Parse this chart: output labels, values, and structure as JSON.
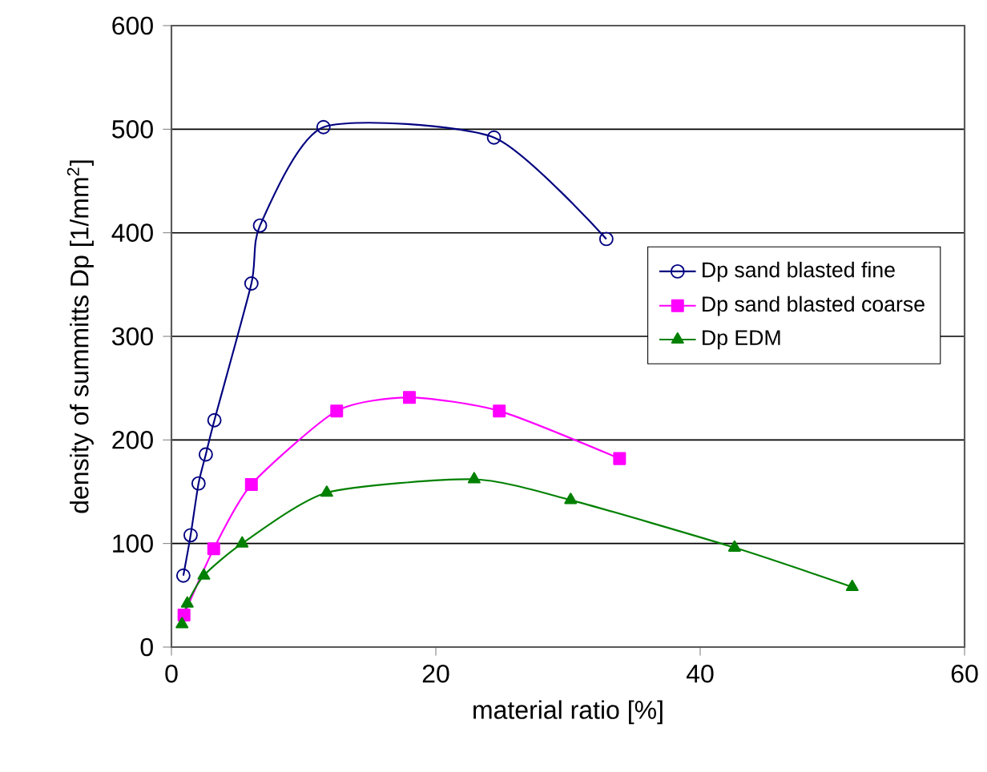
{
  "chart_data": {
    "type": "line",
    "xlabel": "material ratio [%]",
    "ylabel": "density  of summitts Dp [1/mm$^{2}$]",
    "xlim": [
      0,
      60
    ],
    "xticks": [
      0,
      20,
      40,
      60
    ],
    "ylim": [
      0,
      600
    ],
    "yticks": [
      0,
      100,
      200,
      300,
      400,
      500,
      600
    ],
    "grid": "y",
    "legend": "right",
    "series": [
      {
        "name": "Dp sand blasted fine",
        "color": "#000080",
        "marker": "circle",
        "x": [
          0.9,
          1.45,
          2.05,
          2.6,
          3.25,
          6.05,
          6.7,
          11.5,
          24.4,
          32.9
        ],
        "values": [
          69,
          108,
          158,
          186,
          219,
          351,
          407,
          502,
          492,
          394
        ]
      },
      {
        "name": "Dp sand blasted coarse",
        "color": "#ff00ff",
        "marker": "square",
        "x": [
          0.95,
          3.2,
          6.05,
          12.5,
          18.0,
          24.8,
          33.9
        ],
        "values": [
          31,
          95,
          157,
          228,
          241,
          228,
          182
        ]
      },
      {
        "name": "Dp EDM",
        "color": "#008000",
        "marker": "triangle",
        "x": [
          0.8,
          1.2,
          2.45,
          5.35,
          11.75,
          22.9,
          30.2,
          42.6,
          51.5
        ],
        "values": [
          22,
          42,
          69,
          100,
          149,
          162,
          142,
          96,
          58
        ]
      }
    ]
  }
}
